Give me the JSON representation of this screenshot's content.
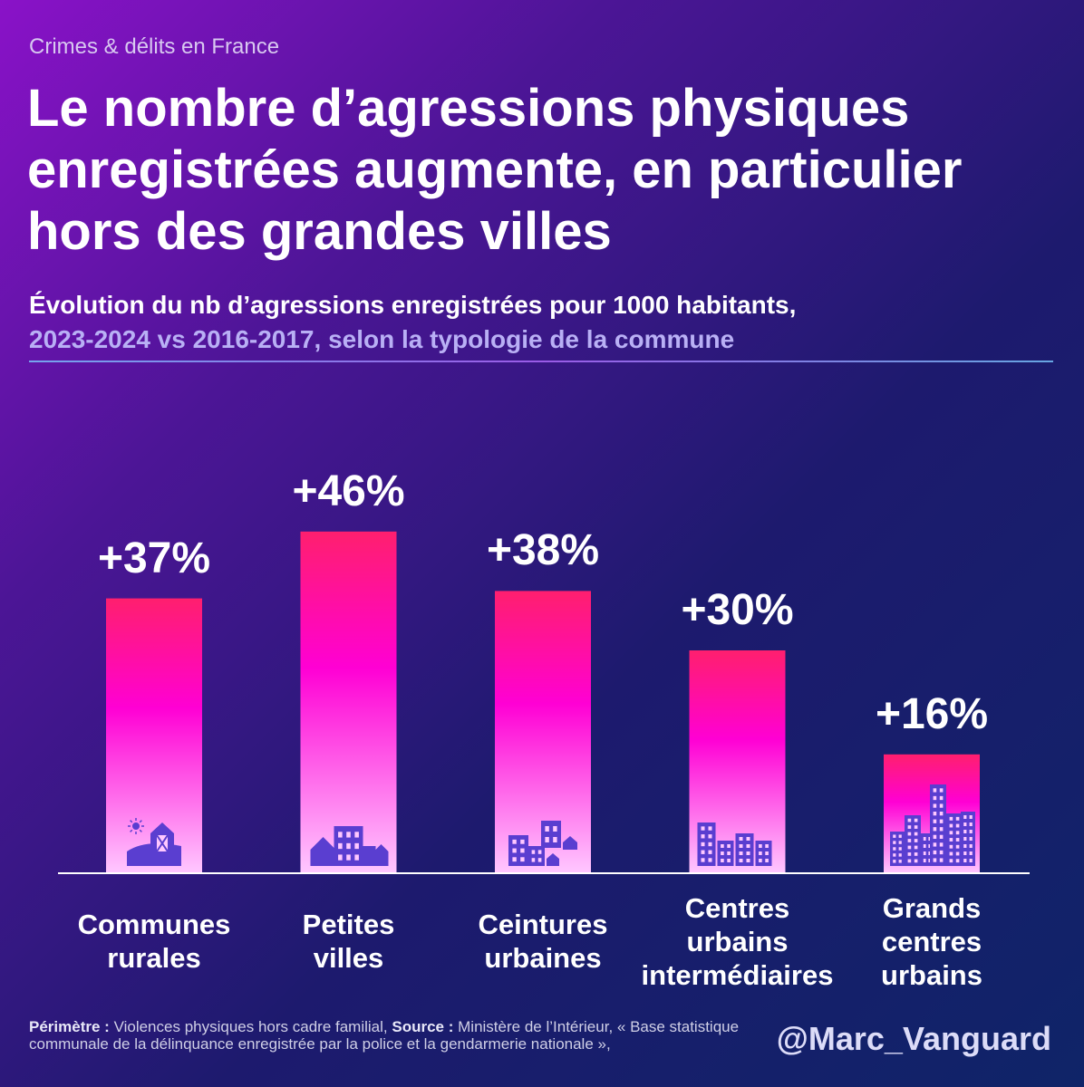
{
  "header": {
    "kicker": "Crimes & délits en France",
    "title": "Le nombre d’agressions physiques enregistrées augmente, en particulier hors des grandes villes",
    "subtitle_line1": "Évolution du nb d’agressions enregistrées pour 1000 habitants,",
    "subtitle_line2": "2023-2024 vs 2016-2017, selon la typologie de la commune"
  },
  "chart_data": {
    "type": "bar",
    "title": "Le nombre d’agressions physiques enregistrées augmente, en particulier hors des grandes villes",
    "categories": [
      [
        "Communes",
        "rurales"
      ],
      [
        "Petites",
        "villes"
      ],
      [
        "Ceintures",
        "urbaines"
      ],
      [
        "Centres",
        "urbains",
        "intermédiaires"
      ],
      [
        "Grands",
        "centres",
        "urbains"
      ]
    ],
    "values": [
      37,
      46,
      38,
      30,
      16
    ],
    "value_labels": [
      "+37%",
      "+46%",
      "+38%",
      "+30%",
      "+16%"
    ],
    "icons": [
      "farm-icon",
      "small-town-icon",
      "suburb-icon",
      "mid-city-icon",
      "big-city-icon"
    ],
    "ylim": [
      0,
      50
    ],
    "grid": false,
    "legend": "none",
    "colors": {
      "bar_top": "#ff1f6e",
      "bar_mid": "#ff00d4",
      "bar_bottom": "#ffc8ff",
      "icon": "#5a3ed0"
    }
  },
  "footer": {
    "perimetre_label": "Périmètre :",
    "perimetre_text": "Violences physiques hors cadre familial,",
    "source_label": "Source :",
    "source_text": "Ministère de l’Intérieur, « Base statistique communale de la délinquance enregistrée par la police et la gendarmerie nationale »,",
    "handle": "@Marc_Vanguard"
  }
}
